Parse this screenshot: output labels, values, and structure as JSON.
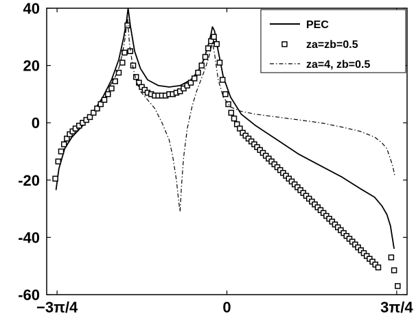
{
  "chart_data": {
    "type": "line",
    "title": "",
    "xlabel": "",
    "ylabel": "",
    "xlim": [
      -2.5,
      2.5
    ],
    "ylim": [
      -60,
      40
    ],
    "x_ticks": [
      {
        "value": -2.356,
        "label": "−3π/4"
      },
      {
        "value": 0,
        "label": "0"
      },
      {
        "value": 2.356,
        "label": "3π/4"
      }
    ],
    "y_ticks": [
      {
        "value": 40,
        "label": "40"
      },
      {
        "value": 20,
        "label": "20"
      },
      {
        "value": 0,
        "label": "0"
      },
      {
        "value": -20,
        "label": "-20"
      },
      {
        "value": -40,
        "label": "-40"
      },
      {
        "value": -60,
        "label": "-60"
      }
    ],
    "grid": false,
    "legend_position": "top-right",
    "series": [
      {
        "name": "PEC",
        "style": "solid",
        "color": "#000000",
        "points": [
          [
            -2.37,
            -23.5
          ],
          [
            -2.33,
            -16
          ],
          [
            -2.25,
            -9
          ],
          [
            -2.15,
            -5
          ],
          [
            -2.0,
            -1
          ],
          [
            -1.85,
            4
          ],
          [
            -1.72,
            9
          ],
          [
            -1.6,
            15
          ],
          [
            -1.5,
            22
          ],
          [
            -1.43,
            30
          ],
          [
            -1.39,
            36
          ],
          [
            -1.37,
            40
          ],
          [
            -1.34,
            34
          ],
          [
            -1.28,
            25
          ],
          [
            -1.2,
            19
          ],
          [
            -1.1,
            15
          ],
          [
            -0.95,
            13
          ],
          [
            -0.8,
            12.5
          ],
          [
            -0.65,
            13
          ],
          [
            -0.5,
            15
          ],
          [
            -0.4,
            18
          ],
          [
            -0.32,
            22
          ],
          [
            -0.26,
            27
          ],
          [
            -0.22,
            31
          ],
          [
            -0.2,
            33.5
          ],
          [
            -0.17,
            32
          ],
          [
            -0.12,
            25
          ],
          [
            -0.05,
            16
          ],
          [
            0.05,
            9
          ],
          [
            0.2,
            3
          ],
          [
            0.4,
            -1
          ],
          [
            0.7,
            -6
          ],
          [
            1.0,
            -11
          ],
          [
            1.3,
            -15
          ],
          [
            1.6,
            -19
          ],
          [
            1.85,
            -23
          ],
          [
            2.05,
            -26
          ],
          [
            2.15,
            -29
          ],
          [
            2.22,
            -32
          ],
          [
            2.27,
            -36
          ],
          [
            2.32,
            -44
          ]
        ]
      },
      {
        "name": "za=zb=0.5",
        "style": "markers",
        "marker": "square",
        "color": "#000000",
        "points": [
          [
            -2.38,
            -19.5
          ],
          [
            -2.34,
            -13.5
          ],
          [
            -2.3,
            -10
          ],
          [
            -2.26,
            -7.5
          ],
          [
            -2.22,
            -5.5
          ],
          [
            -2.18,
            -4
          ],
          [
            -2.14,
            -3
          ],
          [
            -2.1,
            -2
          ],
          [
            -2.05,
            -1
          ],
          [
            -2.0,
            0
          ],
          [
            -1.95,
            1
          ],
          [
            -1.9,
            2
          ],
          [
            -1.85,
            3.5
          ],
          [
            -1.8,
            5
          ],
          [
            -1.75,
            6.5
          ],
          [
            -1.7,
            8
          ],
          [
            -1.65,
            10
          ],
          [
            -1.6,
            12
          ],
          [
            -1.55,
            14.5
          ],
          [
            -1.5,
            17.5
          ],
          [
            -1.45,
            21
          ],
          [
            -1.42,
            24.5
          ],
          [
            -1.38,
            34
          ],
          [
            -1.34,
            25
          ],
          [
            -1.3,
            20
          ],
          [
            -1.26,
            16
          ],
          [
            -1.22,
            14
          ],
          [
            -1.18,
            12.5
          ],
          [
            -1.14,
            11.5
          ],
          [
            -1.1,
            10.5
          ],
          [
            -1.05,
            10
          ],
          [
            -1.0,
            9.5
          ],
          [
            -0.95,
            9.5
          ],
          [
            -0.9,
            9.5
          ],
          [
            -0.85,
            9.5
          ],
          [
            -0.8,
            10
          ],
          [
            -0.75,
            10
          ],
          [
            -0.7,
            10.5
          ],
          [
            -0.65,
            11
          ],
          [
            -0.6,
            12
          ],
          [
            -0.55,
            13
          ],
          [
            -0.5,
            14
          ],
          [
            -0.45,
            15.5
          ],
          [
            -0.4,
            17.5
          ],
          [
            -0.35,
            20
          ],
          [
            -0.3,
            23
          ],
          [
            -0.26,
            26
          ],
          [
            -0.22,
            28.5
          ],
          [
            -0.18,
            30
          ],
          [
            -0.14,
            27.5
          ],
          [
            -0.1,
            21
          ],
          [
            -0.06,
            15
          ],
          [
            -0.02,
            10
          ],
          [
            0.02,
            6.5
          ],
          [
            0.06,
            3.5
          ],
          [
            0.1,
            1.5
          ],
          [
            0.14,
            -0.5
          ],
          [
            0.18,
            -2
          ],
          [
            0.22,
            -3.5
          ],
          [
            0.26,
            -4.5
          ],
          [
            0.3,
            -5.5
          ],
          [
            0.34,
            -6.5
          ],
          [
            0.38,
            -7.5
          ],
          [
            0.42,
            -8.5
          ],
          [
            0.46,
            -9.5
          ],
          [
            0.5,
            -10.5
          ],
          [
            0.54,
            -11.5
          ],
          [
            0.58,
            -12.5
          ],
          [
            0.62,
            -13.5
          ],
          [
            0.66,
            -14.5
          ],
          [
            0.7,
            -15.5
          ],
          [
            0.74,
            -16.5
          ],
          [
            0.78,
            -17.5
          ],
          [
            0.82,
            -18.5
          ],
          [
            0.86,
            -19.5
          ],
          [
            0.9,
            -20.5
          ],
          [
            0.94,
            -21.5
          ],
          [
            0.98,
            -22.5
          ],
          [
            1.02,
            -23.5
          ],
          [
            1.06,
            -24.5
          ],
          [
            1.1,
            -25.5
          ],
          [
            1.14,
            -26.5
          ],
          [
            1.18,
            -27.5
          ],
          [
            1.22,
            -28.5
          ],
          [
            1.26,
            -29.5
          ],
          [
            1.3,
            -30.5
          ],
          [
            1.34,
            -31.5
          ],
          [
            1.38,
            -32.5
          ],
          [
            1.42,
            -33.5
          ],
          [
            1.46,
            -34.5
          ],
          [
            1.5,
            -35.5
          ],
          [
            1.54,
            -36.5
          ],
          [
            1.58,
            -37.5
          ],
          [
            1.62,
            -38.5
          ],
          [
            1.66,
            -39.5
          ],
          [
            1.7,
            -40.5
          ],
          [
            1.74,
            -41.5
          ],
          [
            1.78,
            -42.5
          ],
          [
            1.82,
            -43.5
          ],
          [
            1.86,
            -44.5
          ],
          [
            1.9,
            -45.5
          ],
          [
            1.94,
            -46.5
          ],
          [
            1.98,
            -47.5
          ],
          [
            2.02,
            -48.5
          ],
          [
            2.06,
            -49.5
          ],
          [
            2.1,
            -50.5
          ],
          [
            2.28,
            -47
          ],
          [
            2.32,
            -51.5
          ],
          [
            2.37,
            -57
          ]
        ]
      },
      {
        "name": "za=4, zb=0.5",
        "style": "dashdot",
        "color": "#000000",
        "points": [
          [
            -1.62,
            13
          ],
          [
            -1.55,
            16
          ],
          [
            -1.5,
            19
          ],
          [
            -1.45,
            24
          ],
          [
            -1.41,
            30
          ],
          [
            -1.38,
            37
          ],
          [
            -1.35,
            27
          ],
          [
            -1.3,
            19
          ],
          [
            -1.25,
            14
          ],
          [
            -1.2,
            11
          ],
          [
            -1.1,
            8
          ],
          [
            -1.0,
            5
          ],
          [
            -0.9,
            0
          ],
          [
            -0.8,
            -6
          ],
          [
            -0.75,
            -12
          ],
          [
            -0.7,
            -20
          ],
          [
            -0.67,
            -27
          ],
          [
            -0.65,
            -31
          ],
          [
            -0.63,
            -22
          ],
          [
            -0.6,
            -12
          ],
          [
            -0.55,
            -2
          ],
          [
            -0.48,
            6
          ],
          [
            -0.42,
            11
          ],
          [
            -0.36,
            15
          ],
          [
            -0.3,
            19
          ],
          [
            -0.25,
            23
          ],
          [
            -0.22,
            26
          ],
          [
            -0.2,
            28
          ],
          [
            -0.17,
            24
          ],
          [
            -0.12,
            15
          ],
          [
            -0.05,
            9
          ],
          [
            0.05,
            5.5
          ],
          [
            0.2,
            4
          ],
          [
            0.4,
            3
          ],
          [
            0.7,
            2
          ],
          [
            1.0,
            1
          ],
          [
            1.3,
            0
          ],
          [
            1.6,
            -1.5
          ],
          [
            1.85,
            -3
          ],
          [
            2.05,
            -5
          ],
          [
            2.15,
            -7
          ],
          [
            2.22,
            -9
          ],
          [
            2.26,
            -12
          ],
          [
            2.3,
            -15
          ],
          [
            2.33,
            -18.5
          ]
        ]
      }
    ]
  }
}
